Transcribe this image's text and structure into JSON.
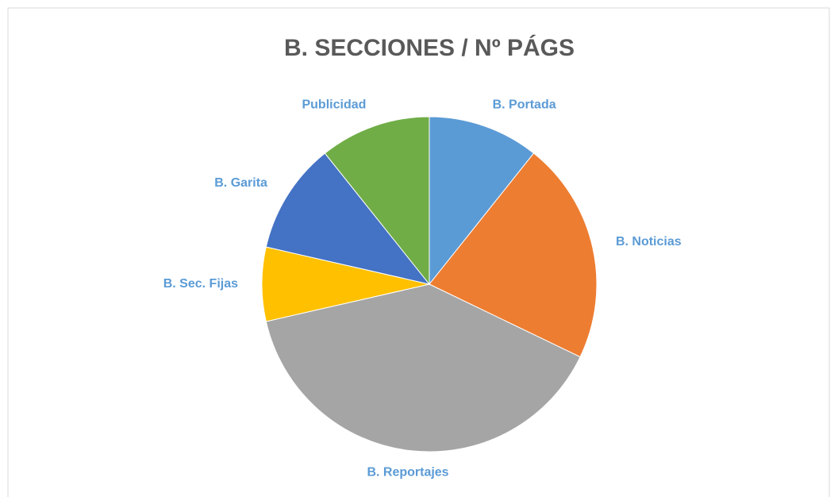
{
  "chart_data": {
    "type": "pie",
    "title": "B. SECCIONES / Nº PÁGS",
    "categories": [
      "B. Portada",
      "B. Noticias",
      "B. Reportajes",
      "B. Sec. Fijas",
      "B. Garita",
      "Publicidad"
    ],
    "values": [
      3,
      6,
      11,
      2,
      3,
      3
    ],
    "colors": [
      "#5b9bd5",
      "#ed7d31",
      "#a5a5a5",
      "#ffc000",
      "#4472c4",
      "#70ad47"
    ]
  }
}
